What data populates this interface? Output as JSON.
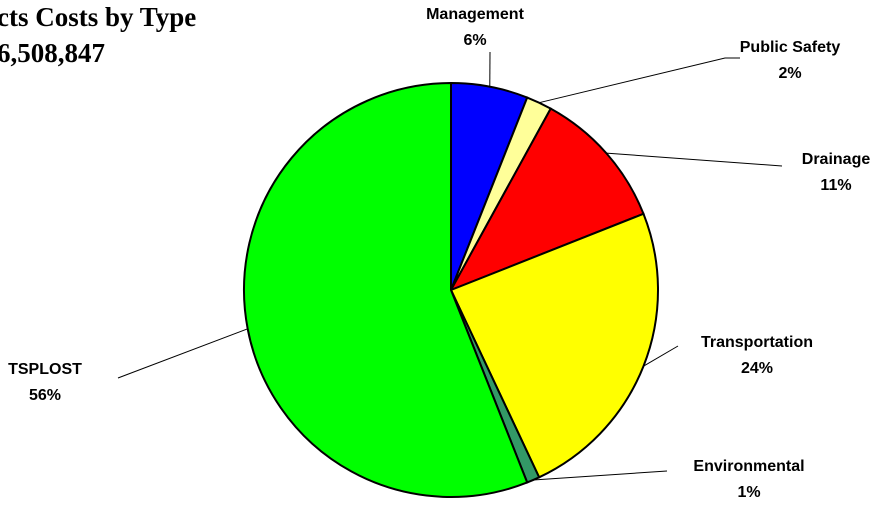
{
  "chart_data": {
    "type": "pie",
    "title": "cts Costs by Type",
    "subtitle": "6,508,847",
    "categories": [
      "Management",
      "Public Safety",
      "Drainage",
      "Transportation",
      "Environmental",
      "TSPLOST"
    ],
    "values": [
      6,
      2,
      11,
      24,
      1,
      56
    ],
    "value_labels": [
      "6%",
      "2%",
      "11%",
      "24%",
      "1%",
      "56%"
    ],
    "colors": [
      "#0000ff",
      "#ffff99",
      "#ff0000",
      "#ffff00",
      "#339966",
      "#00ff00"
    ]
  }
}
